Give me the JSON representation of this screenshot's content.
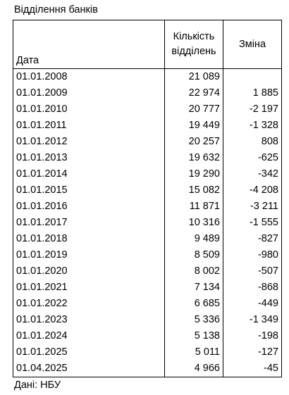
{
  "title": "Відділення банків",
  "table": {
    "headers": [
      "Дата",
      "Кількість відділень",
      "Зміна"
    ],
    "rows": [
      [
        "01.01.2008",
        "21 089"
      ],
      [
        "01.01.2009",
        "22 974",
        "1 885"
      ],
      [
        "01.01.2010",
        "20 777",
        "-2 197"
      ],
      [
        "01.01.2011",
        "19 449",
        "-1 328"
      ],
      [
        "01.01.2012",
        "20 257",
        "808"
      ],
      [
        "01.01.2013",
        "19 632",
        "-625"
      ],
      [
        "01.01.2014",
        "19 290",
        "-342"
      ],
      [
        "01.01.2015",
        "15 082",
        "-4 208"
      ],
      [
        "01.01.2016",
        "11 871",
        "-3 211"
      ],
      [
        "01.01.2017",
        "10 316",
        "-1 555"
      ],
      [
        "01.01.2018",
        "9 489",
        "-827"
      ],
      [
        "01.01.2019",
        "8 509",
        "-980"
      ],
      [
        "01.01.2020",
        "8 002",
        "-507"
      ],
      [
        "01.01.2021",
        "7 134",
        "-868"
      ],
      [
        "01.01.2022",
        "6 685",
        "-449"
      ],
      [
        "01.01.2023",
        "5 336",
        "-1 349"
      ],
      [
        "01.01.2024",
        "5 138",
        "-198"
      ],
      [
        "01.01.2025",
        "5 011",
        "-127"
      ],
      [
        "01.04.2025",
        "4 966",
        "-45"
      ]
    ]
  },
  "footer": "Дані: НБУ"
}
